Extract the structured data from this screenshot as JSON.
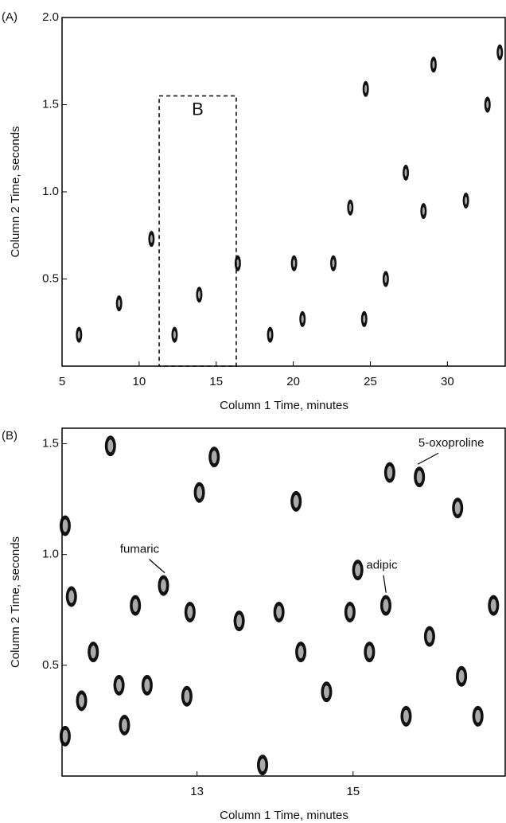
{
  "chart_data": [
    {
      "type": "contour",
      "panel_label": "(A)",
      "x_label": "Column 1 Time, minutes",
      "y_label": "Column 2 Time, seconds",
      "xlim": [
        5,
        33.8
      ],
      "ylim": [
        0,
        2.0
      ],
      "xticks": [
        5,
        10,
        15,
        20,
        25,
        30
      ],
      "yticks": [
        0.5,
        {
          "value": 1.0,
          "label": "1.0"
        },
        1.5,
        {
          "value": 2.0,
          "label": "2.0"
        }
      ],
      "x": [
        28.45,
        31.2,
        32.6,
        29.1,
        33.4,
        26.0,
        24.6,
        20.05,
        22.6,
        16.4,
        13.9,
        10.8,
        6.1,
        8.7,
        27.3,
        24.7,
        23.7,
        20.6,
        18.5,
        12.3
      ],
      "values": [
        0.89,
        0.95,
        1.5,
        1.73,
        1.8,
        0.5,
        0.27,
        0.59,
        0.59,
        0.59,
        0.41,
        0.73,
        0.18,
        0.36,
        1.11,
        1.59,
        0.91,
        0.27,
        0.18,
        0.18
      ],
      "highlight": {
        "label": "B",
        "xlim": [
          11.3,
          16.3
        ],
        "ylim": [
          0,
          1.55
        ]
      }
    },
    {
      "type": "contour",
      "panel_label": "(B)",
      "x_label": "Column 1 Time, minutes",
      "y_label": "Column 2 Time, seconds",
      "xlim": [
        11.27,
        16.96
      ],
      "ylim": [
        0,
        1.57
      ],
      "xticks": [
        13,
        15
      ],
      "yticks": [
        0.5,
        {
          "value": 1.0,
          "label": "1.0"
        },
        1.5
      ],
      "x": [
        11.31,
        11.67,
        11.39,
        11.89,
        13.22,
        13.03,
        12.91,
        12.21,
        12.0,
        11.52,
        11.31,
        12.07,
        12.36,
        12.87,
        13.54,
        14.05,
        14.33,
        14.27,
        13.84,
        15.06,
        14.96,
        15.21,
        15.68,
        15.98,
        16.34,
        16.8,
        16.6,
        16.39,
        14.66,
        15.47
      ],
      "values": [
        1.13,
        0.56,
        0.81,
        1.49,
        1.44,
        1.28,
        0.74,
        0.77,
        0.41,
        0.34,
        0.18,
        0.23,
        0.41,
        0.36,
        0.7,
        0.74,
        0.56,
        1.24,
        0.05,
        0.93,
        0.74,
        0.56,
        0.27,
        0.63,
        1.21,
        0.77,
        0.27,
        0.45,
        0.38,
        1.37
      ],
      "labeled_peaks": {
        "names": [
          "fumaric",
          "adipic",
          "5-oxoproline"
        ],
        "x": [
          12.57,
          15.42,
          15.85
        ],
        "y": [
          0.86,
          0.77,
          1.35
        ]
      }
    }
  ]
}
